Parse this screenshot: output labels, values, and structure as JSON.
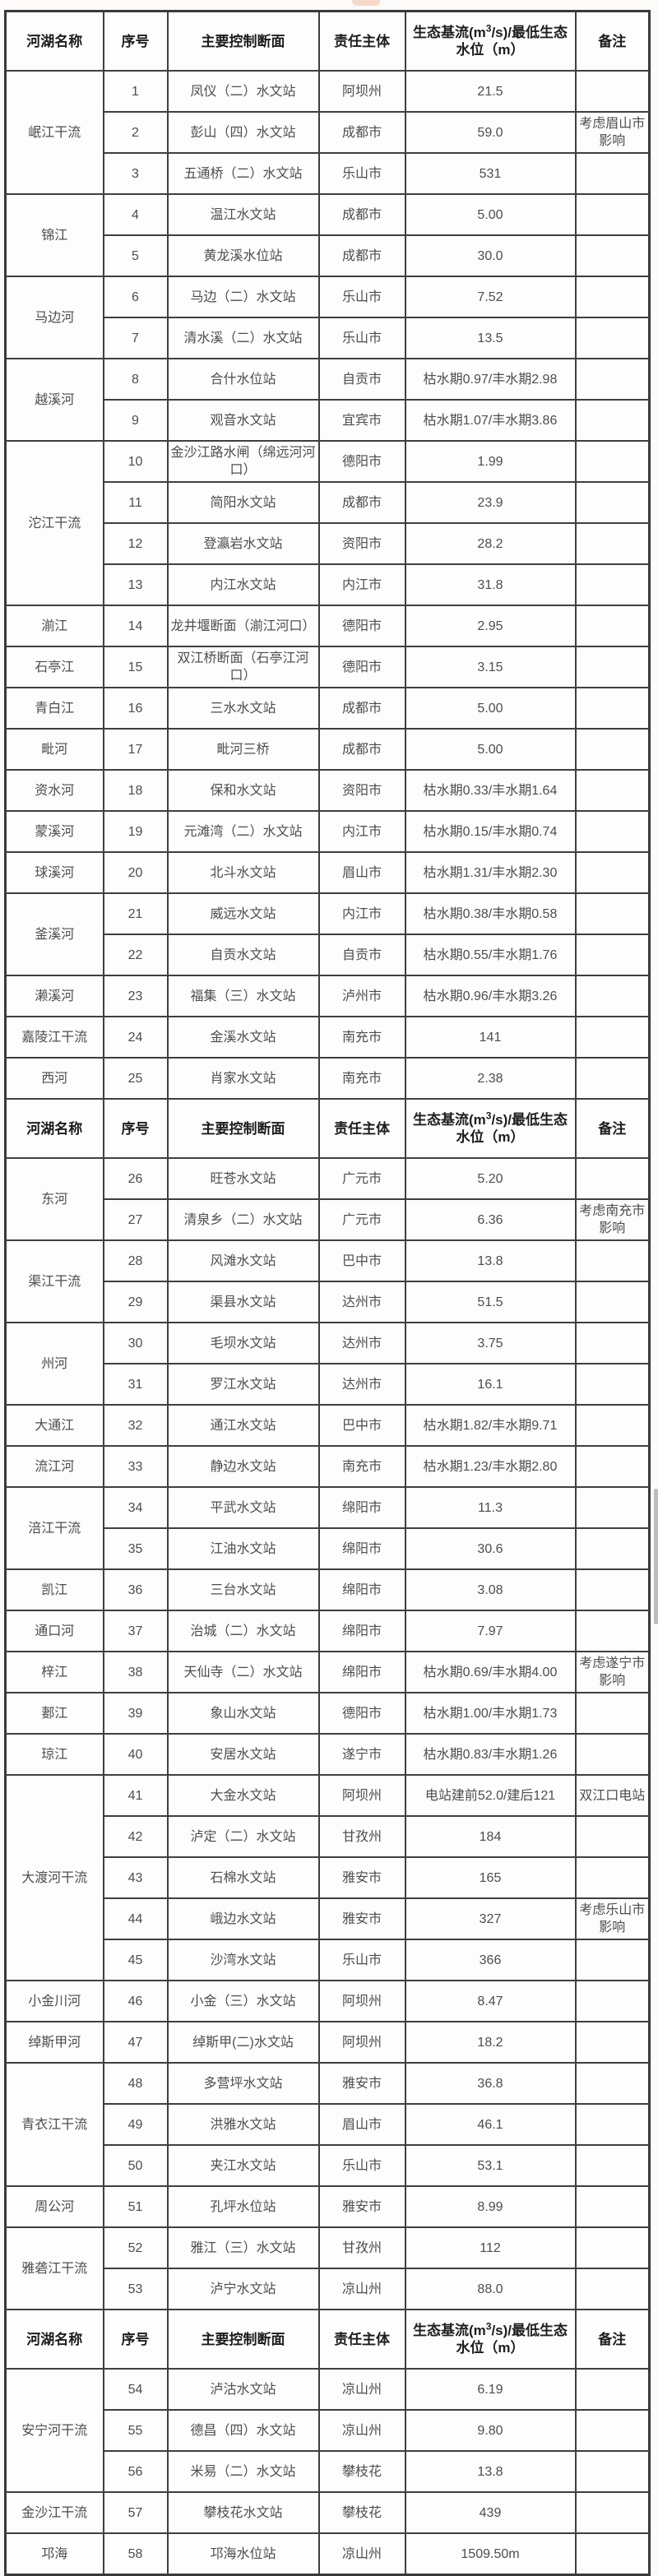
{
  "page": {
    "background": "#fdfbfa",
    "top_blob_color": "#f5d2c0",
    "scrollbar_color": "#bdbdbd"
  },
  "table": {
    "columns": [
      {
        "key": "river",
        "label": "河湖名称"
      },
      {
        "key": "no",
        "label": "序号"
      },
      {
        "key": "station",
        "label": "主要控制断面"
      },
      {
        "key": "authority",
        "label": "责任主"
      },
      {
        "key": "authority2",
        "label": "体"
      },
      {
        "key": "flow",
        "label_prefix": "生态基流(m",
        "label_sup": "3",
        "label_suffix": "/s)/最低生态水位（m）"
      },
      {
        "key": "remark",
        "label": "备注"
      }
    ],
    "sections": [
      {
        "groups": [
          {
            "name": "岷江干流",
            "rows": [
              {
                "no": "1",
                "station": "凤仪（二）水文站",
                "authority": "阿坝州",
                "flow": "21.5",
                "remark": ""
              },
              {
                "no": "2",
                "station": "彭山（四）水文站",
                "authority": "成都市",
                "flow": "59.0",
                "remark": "考虑眉山市影响"
              },
              {
                "no": "3",
                "station": "五通桥（二）水文站",
                "authority": "乐山市",
                "flow": "531",
                "remark": ""
              }
            ]
          },
          {
            "name": "锦江",
            "rows": [
              {
                "no": "4",
                "station": "温江水文站",
                "authority": "成都市",
                "flow": "5.00",
                "remark": ""
              },
              {
                "no": "5",
                "station": "黄龙溪水位站",
                "authority": "成都市",
                "flow": "30.0",
                "remark": ""
              }
            ]
          },
          {
            "name": "马边河",
            "rows": [
              {
                "no": "6",
                "station": "马边（二）水文站",
                "authority": "乐山市",
                "flow": "7.52",
                "remark": ""
              },
              {
                "no": "7",
                "station": "清水溪（二）水文站",
                "authority": "乐山市",
                "flow": "13.5",
                "remark": ""
              }
            ]
          },
          {
            "name": "越溪河",
            "rows": [
              {
                "no": "8",
                "station": "合什水位站",
                "authority": "自贡市",
                "flow": "枯水期0.97/丰水期2.98",
                "remark": ""
              },
              {
                "no": "9",
                "station": "观音水文站",
                "authority": "宜宾市",
                "flow": "枯水期1.07/丰水期3.86",
                "remark": ""
              }
            ]
          },
          {
            "name": "沱江干流",
            "rows": [
              {
                "no": "10",
                "station": "金沙江路水闸（绵远河河口）",
                "authority": "德阳市",
                "flow": "1.99",
                "remark": ""
              },
              {
                "no": "11",
                "station": "简阳水文站",
                "authority": "成都市",
                "flow": "23.9",
                "remark": ""
              },
              {
                "no": "12",
                "station": "登瀛岩水文站",
                "authority": "资阳市",
                "flow": "28.2",
                "remark": ""
              },
              {
                "no": "13",
                "station": "内江水文站",
                "authority": "内江市",
                "flow": "31.8",
                "remark": ""
              }
            ]
          },
          {
            "name": "湔江",
            "rows": [
              {
                "no": "14",
                "station": "龙井堰断面（湔江河口）",
                "authority": "德阳市",
                "flow": "2.95",
                "remark": ""
              }
            ]
          },
          {
            "name": "石亭江",
            "rows": [
              {
                "no": "15",
                "station": "双江桥断面（石亭江河口）",
                "authority": "德阳市",
                "flow": "3.15",
                "remark": ""
              }
            ]
          },
          {
            "name": "青白江",
            "rows": [
              {
                "no": "16",
                "station": "三水水文站",
                "authority": "成都市",
                "flow": "5.00",
                "remark": ""
              }
            ]
          },
          {
            "name": "毗河",
            "rows": [
              {
                "no": "17",
                "station": "毗河三桥",
                "authority": "成都市",
                "flow": "5.00",
                "remark": ""
              }
            ]
          },
          {
            "name": "资水河",
            "rows": [
              {
                "no": "18",
                "station": "保和水文站",
                "authority": "资阳市",
                "flow": "枯水期0.33/丰水期1.64",
                "remark": ""
              }
            ]
          },
          {
            "name": "蒙溪河",
            "rows": [
              {
                "no": "19",
                "station": "元滩湾（二）水文站",
                "authority": "内江市",
                "flow": "枯水期0.15/丰水期0.74",
                "remark": ""
              }
            ]
          },
          {
            "name": "球溪河",
            "rows": [
              {
                "no": "20",
                "station": "北斗水文站",
                "authority": "眉山市",
                "flow": "枯水期1.31/丰水期2.30",
                "remark": ""
              }
            ]
          },
          {
            "name": "釜溪河",
            "rows": [
              {
                "no": "21",
                "station": "威远水文站",
                "authority": "内江市",
                "flow": "枯水期0.38/丰水期0.58",
                "remark": ""
              },
              {
                "no": "22",
                "station": "自贡水文站",
                "authority": "自贡市",
                "flow": "枯水期0.55/丰水期1.76",
                "remark": ""
              }
            ]
          },
          {
            "name": "濑溪河",
            "rows": [
              {
                "no": "23",
                "station": "福集（三）水文站",
                "authority": "泸州市",
                "flow": "枯水期0.96/丰水期3.26",
                "remark": ""
              }
            ]
          },
          {
            "name": "嘉陵江干流",
            "rows": [
              {
                "no": "24",
                "station": "金溪水文站",
                "authority": "南充市",
                "flow": "141",
                "remark": ""
              }
            ]
          },
          {
            "name": "西河",
            "rows": [
              {
                "no": "25",
                "station": "肖家水文站",
                "authority": "南充市",
                "flow": "2.38",
                "remark": ""
              }
            ]
          }
        ]
      },
      {
        "groups": [
          {
            "name": "东河",
            "rows": [
              {
                "no": "26",
                "station": "旺苍水文站",
                "authority": "广元市",
                "flow": "5.20",
                "remark": ""
              },
              {
                "no": "27",
                "station": "清泉乡（二）水文站",
                "authority": "广元市",
                "flow": "6.36",
                "remark": "考虑南充市影响"
              }
            ]
          },
          {
            "name": "渠江干流",
            "rows": [
              {
                "no": "28",
                "station": "风滩水文站",
                "authority": "巴中市",
                "flow": "13.8",
                "remark": ""
              },
              {
                "no": "29",
                "station": "渠县水文站",
                "authority": "达州市",
                "flow": "51.5",
                "remark": ""
              }
            ]
          },
          {
            "name": "州河",
            "rows": [
              {
                "no": "30",
                "station": "毛坝水文站",
                "authority": "达州市",
                "flow": "3.75",
                "remark": ""
              },
              {
                "no": "31",
                "station": "罗江水文站",
                "authority": "达州市",
                "flow": "16.1",
                "remark": ""
              }
            ]
          },
          {
            "name": "大通江",
            "rows": [
              {
                "no": "32",
                "station": "通江水文站",
                "authority": "巴中市",
                "flow": "枯水期1.82/丰水期9.71",
                "remark": ""
              }
            ]
          },
          {
            "name": "流江河",
            "rows": [
              {
                "no": "33",
                "station": "静边水文站",
                "authority": "南充市",
                "flow": "枯水期1.23/丰水期2.80",
                "remark": ""
              }
            ]
          },
          {
            "name": "涪江干流",
            "rows": [
              {
                "no": "34",
                "station": "平武水文站",
                "authority": "绵阳市",
                "flow": "11.3",
                "remark": ""
              },
              {
                "no": "35",
                "station": "江油水文站",
                "authority": "绵阳市",
                "flow": "30.6",
                "remark": ""
              }
            ]
          },
          {
            "name": "凯江",
            "rows": [
              {
                "no": "36",
                "station": "三台水文站",
                "authority": "绵阳市",
                "flow": "3.08",
                "remark": ""
              }
            ]
          },
          {
            "name": "通口河",
            "rows": [
              {
                "no": "37",
                "station": "治城（二）水文站",
                "authority": "绵阳市",
                "flow": "7.97",
                "remark": ""
              }
            ]
          },
          {
            "name": "梓江",
            "rows": [
              {
                "no": "38",
                "station": "天仙寺（二）水文站",
                "authority": "绵阳市",
                "flow": "枯水期0.69/丰水期4.00",
                "remark": "考虑遂宁市影响"
              }
            ]
          },
          {
            "name": "郪江",
            "rows": [
              {
                "no": "39",
                "station": "象山水文站",
                "authority": "德阳市",
                "flow": "枯水期1.00/丰水期1.73",
                "remark": ""
              }
            ]
          },
          {
            "name": "琼江",
            "rows": [
              {
                "no": "40",
                "station": "安居水文站",
                "authority": "遂宁市",
                "flow": "枯水期0.83/丰水期1.26",
                "remark": ""
              }
            ]
          },
          {
            "name": "大渡河干流",
            "rows": [
              {
                "no": "41",
                "station": "大金水文站",
                "authority": "阿坝州",
                "flow": "电站建前52.0/建后121",
                "remark": "双江口电站"
              },
              {
                "no": "42",
                "station": "泸定（二）水文站",
                "authority": "甘孜州",
                "flow": "184",
                "remark": ""
              },
              {
                "no": "43",
                "station": "石棉水文站",
                "authority": "雅安市",
                "flow": "165",
                "remark": ""
              },
              {
                "no": "44",
                "station": "峨边水文站",
                "authority": "雅安市",
                "flow": "327",
                "remark": "考虑乐山市影响"
              },
              {
                "no": "45",
                "station": "沙湾水文站",
                "authority": "乐山市",
                "flow": "366",
                "remark": ""
              }
            ]
          },
          {
            "name": "小金川河",
            "rows": [
              {
                "no": "46",
                "station": "小金（三）水文站",
                "authority": "阿坝州",
                "flow": "8.47",
                "remark": ""
              }
            ]
          },
          {
            "name": "绰斯甲河",
            "rows": [
              {
                "no": "47",
                "station": "绰斯甲(二)水文站",
                "authority": "阿坝州",
                "flow": "18.2",
                "remark": ""
              }
            ]
          },
          {
            "name": "青衣江干流",
            "rows": [
              {
                "no": "48",
                "station": "多营坪水文站",
                "authority": "雅安市",
                "flow": "36.8",
                "remark": ""
              },
              {
                "no": "49",
                "station": "洪雅水文站",
                "authority": "眉山市",
                "flow": "46.1",
                "remark": ""
              },
              {
                "no": "50",
                "station": "夹江水文站",
                "authority": "乐山市",
                "flow": "53.1",
                "remark": ""
              }
            ]
          },
          {
            "name": "周公河",
            "rows": [
              {
                "no": "51",
                "station": "孔坪水位站",
                "authority": "雅安市",
                "flow": "8.99",
                "remark": ""
              }
            ]
          },
          {
            "name": "雅砻江干流",
            "rows": [
              {
                "no": "52",
                "station": "雅江（三）水文站",
                "authority": "甘孜州",
                "flow": "112",
                "remark": ""
              },
              {
                "no": "53",
                "station": "泸宁水文站",
                "authority": "凉山州",
                "flow": "88.0",
                "remark": ""
              }
            ]
          }
        ]
      },
      {
        "groups": [
          {
            "name": "安宁河干流",
            "rows": [
              {
                "no": "54",
                "station": "泸沽水文站",
                "authority": "凉山州",
                "flow": "6.19",
                "remark": ""
              },
              {
                "no": "55",
                "station": "德昌（四）水文站",
                "authority": "凉山州",
                "flow": "9.80",
                "remark": ""
              },
              {
                "no": "56",
                "station": "米易（二）水文站",
                "authority": "攀枝花",
                "flow": "13.8",
                "remark": ""
              }
            ]
          },
          {
            "name": "金沙江干流",
            "rows": [
              {
                "no": "57",
                "station": "攀枝花水文站",
                "authority": "攀枝花",
                "flow": "439",
                "remark": ""
              }
            ]
          },
          {
            "name": "邛海",
            "rows": [
              {
                "no": "58",
                "station": "邛海水位站",
                "authority": "凉山州",
                "flow": "1509.50m",
                "remark": ""
              }
            ]
          }
        ]
      }
    ]
  }
}
